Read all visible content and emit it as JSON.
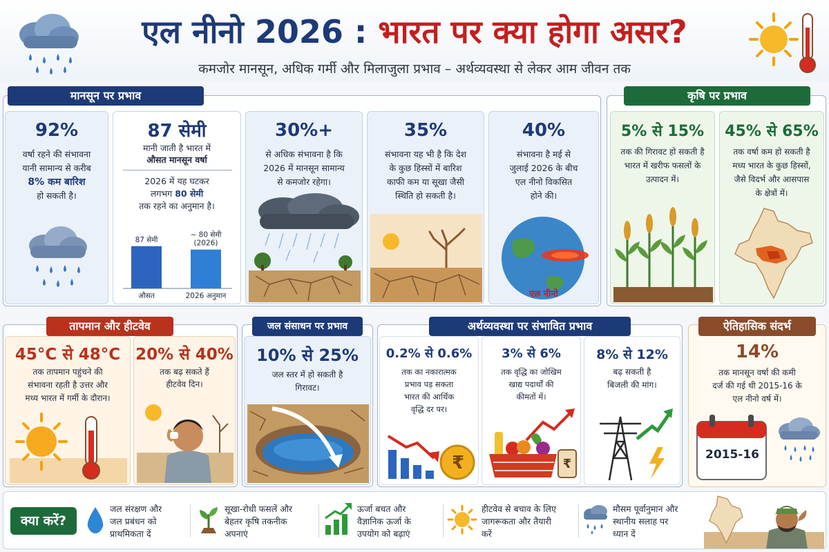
{
  "header": {
    "title_part1": "एल नीनो 2026 :",
    "title_part2": "भारत पर क्या होगा असर?",
    "subtitle": "कमजोर मानसून, अधिक गर्मी और मिलाजुला प्रभाव – अर्थव्यवस्था से लेकर आम जीवन तक"
  },
  "monsoon": {
    "title": "मानसून पर प्रभाव",
    "card1": {
      "big": "92%",
      "line1": "वर्षा रहने की संभावना",
      "line2": "यानी सामान्य से करीब",
      "highlight": "8% कम बारिश",
      "line3": "हो सकती है।"
    },
    "card2": {
      "big": "87 सेमी",
      "line1": "मानी जाती है भारत में",
      "line2": "औसत मानसून वर्षा",
      "line3": "2026 में यह घटकर",
      "line4a": "लगभग",
      "line4b": "80 सेमी",
      "line5": "तक रहने का अनुमान है।",
      "chart": {
        "type": "bar",
        "categories": [
          "औसत",
          "2026 अनुमान"
        ],
        "values": [
          87,
          80
        ],
        "bar_labels": [
          "87 सेमी",
          "~ 80 सेमी\n(2026)"
        ],
        "ylim": [
          0,
          90
        ]
      }
    },
    "card3": {
      "big": "30%+",
      "line1": "से अधिक संभावना है कि",
      "line2": "2026 में मानसून सामान्य",
      "line3": "से कमजोर रहेगा।"
    },
    "card4": {
      "big": "35%",
      "line1": "संभावना यह भी है कि देश",
      "line2": "के कुछ हिस्सों में बारिश",
      "line3": "काफी कम या सूखा जैसी",
      "line4": "स्थिति हो सकती है।"
    },
    "card5": {
      "big": "40%",
      "line1": "संभावना है मई से",
      "line2": "जुलाई 2026 के बीच",
      "line3": "एल नीनो विकसित",
      "line4": "होने की।",
      "globe_label": "एल नीनो"
    }
  },
  "agriculture": {
    "title": "कृषि पर प्रभाव",
    "card1": {
      "big": "5% से 15%",
      "line1": "तक की गिरावट हो सकती है",
      "line2": "भारत में खरीफ फसलों के",
      "line3": "उत्पादन में।"
    },
    "card2": {
      "big": "45% से 65%",
      "line1": "तक वर्षा कम हो सकती है",
      "line2": "मध्य भारत के कुछ हिस्सों,",
      "line3": "जैसे विदर्भ और आसपास",
      "line4": "के क्षेत्रों में।"
    }
  },
  "heat": {
    "title": "तापमान और हीटवेव",
    "card1": {
      "big": "45°C से 48°C",
      "line1": "तक तापमान पहुंचने की",
      "line2": "संभावना रहती है उत्तर और",
      "line3": "मध्य भारत में गर्मी के दौरान।"
    },
    "card2": {
      "big": "20% से 40%",
      "line1": "तक बढ़ सकते हैं",
      "line2": "हीटवेव दिन।"
    }
  },
  "water": {
    "title": "जल संसाधन पर प्रभाव",
    "card1": {
      "big": "10% से 25%",
      "line1": "जल स्तर में हो सकती है",
      "line2": "गिरावट।"
    }
  },
  "economy": {
    "title": "अर्थव्यवस्था पर संभावित प्रभाव",
    "card1": {
      "big": "0.2% से 0.6%",
      "line1": "तक का नकारात्मक",
      "line2": "प्रभाव पड़ सकता",
      "line3": "भारत की आर्थिक",
      "line4": "वृद्धि दर पर।",
      "coin": "₹"
    },
    "card2": {
      "big": "3% से 6%",
      "line1": "तक वृद्धि का जोखिम",
      "line2": "खाद्य पदार्थों की",
      "line3": "कीमतों में।",
      "jar": "₹"
    },
    "card3": {
      "big": "8% से 12%",
      "line1": "बढ़ सकती है",
      "line2": "बिजली की मांग।"
    }
  },
  "history": {
    "title": "ऐतिहासिक संदर्भ",
    "card1": {
      "big": "14%",
      "line1": "तक मानसून वर्षा की कमी",
      "line2": "दर्ज की गई थी 2015-16 के",
      "line3": "एल नीनो वर्ष में।",
      "calendar": "2015-16"
    }
  },
  "footer": {
    "label": "क्या करें?",
    "tips": [
      {
        "l1": "जल संरक्षण और",
        "l2": "जल प्रबंधन को",
        "l3": "प्राथमिकता दें"
      },
      {
        "l1": "सूखा-रोधी फसलें और",
        "l2": "बेहतर कृषि तकनीक",
        "l3": "अपनाएं"
      },
      {
        "l1": "ऊर्जा बचत और",
        "l2": "वैज्ञानिक ऊर्जा के",
        "l3": "उपयोग को बढ़ाएं"
      },
      {
        "l1": "हीटवेव से बचाव के लिए",
        "l2": "जागरूकता और तैयारी",
        "l3": "करें"
      },
      {
        "l1": "मौसम पूर्वानुमान और",
        "l2": "स्थानीय सलाह पर",
        "l3": "ध्यान दें"
      }
    ]
  },
  "colors": {
    "navy": "#1d3a78",
    "red": "#c21f1f",
    "green": "#1d6b3a",
    "orange_red": "#b8321c",
    "brown": "#8a4b2a"
  }
}
